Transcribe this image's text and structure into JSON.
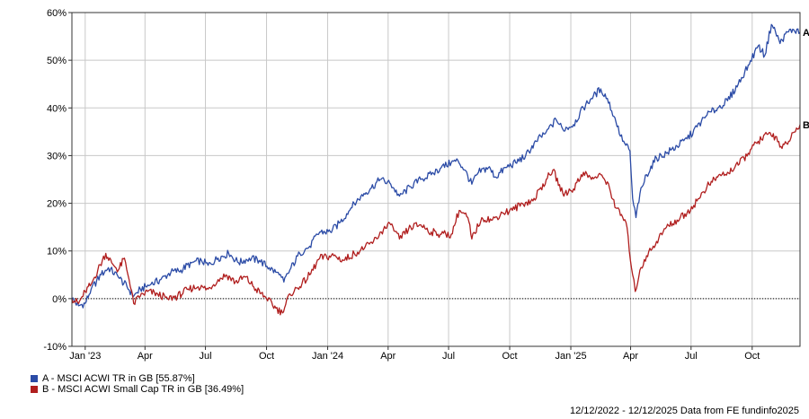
{
  "chart_data": {
    "type": "line",
    "title": "",
    "xlabel": "",
    "ylabel": "",
    "ylim": [
      -10,
      60
    ],
    "y_ticks": [
      -10,
      0,
      10,
      20,
      30,
      40,
      50,
      60
    ],
    "y_tick_labels": [
      "-10%",
      "0%",
      "10%",
      "20%",
      "30%",
      "40%",
      "50%",
      "60%"
    ],
    "x_range": [
      "2022-12-12",
      "2025-12-12"
    ],
    "x_ticks": [
      "2023-01-01",
      "2023-04-01",
      "2023-07-01",
      "2023-10-01",
      "2024-01-01",
      "2024-04-01",
      "2024-07-01",
      "2024-10-01",
      "2025-01-01",
      "2025-04-01",
      "2025-07-01",
      "2025-10-01"
    ],
    "x_tick_labels": [
      "Jan '23",
      "Apr",
      "Jul",
      "Oct",
      "Jan '24",
      "Apr",
      "Jul",
      "Oct",
      "Jan '25",
      "Apr",
      "Jul",
      "Oct"
    ],
    "grid": true,
    "zero_line": "dotted",
    "legend_position": "bottom-left",
    "series": [
      {
        "name": "A - MSCI ACWI TR in GB [55.87%]",
        "end_label": "A",
        "color": "#2b4ba6",
        "points": [
          [
            "2022-12-12",
            0
          ],
          [
            "2022-12-22",
            -1.5
          ],
          [
            "2023-01-01",
            -1
          ],
          [
            "2023-01-10",
            2
          ],
          [
            "2023-01-25",
            5
          ],
          [
            "2023-02-05",
            6.5
          ],
          [
            "2023-02-20",
            4.5
          ],
          [
            "2023-03-05",
            2.5
          ],
          [
            "2023-03-15",
            0.5
          ],
          [
            "2023-03-25",
            2
          ],
          [
            "2023-04-10",
            3
          ],
          [
            "2023-04-25",
            4
          ],
          [
            "2023-05-10",
            5.5
          ],
          [
            "2023-05-25",
            6
          ],
          [
            "2023-06-10",
            7.5
          ],
          [
            "2023-06-25",
            8
          ],
          [
            "2023-07-05",
            7
          ],
          [
            "2023-07-20",
            8.5
          ],
          [
            "2023-08-05",
            9.5
          ],
          [
            "2023-08-20",
            7.5
          ],
          [
            "2023-09-05",
            8.5
          ],
          [
            "2023-09-20",
            8
          ],
          [
            "2023-10-05",
            6.5
          ],
          [
            "2023-10-20",
            5
          ],
          [
            "2023-10-27",
            3.5
          ],
          [
            "2023-11-05",
            6
          ],
          [
            "2023-11-20",
            9.5
          ],
          [
            "2023-12-05",
            11
          ],
          [
            "2023-12-20",
            14
          ],
          [
            "2024-01-05",
            14
          ],
          [
            "2024-01-20",
            16
          ],
          [
            "2024-02-05",
            19
          ],
          [
            "2024-02-20",
            21.5
          ],
          [
            "2024-03-05",
            23
          ],
          [
            "2024-03-20",
            25
          ],
          [
            "2024-04-05",
            24
          ],
          [
            "2024-04-18",
            21.5
          ],
          [
            "2024-05-05",
            23.5
          ],
          [
            "2024-05-20",
            25
          ],
          [
            "2024-06-05",
            26
          ],
          [
            "2024-06-20",
            27.5
          ],
          [
            "2024-07-05",
            28.5
          ],
          [
            "2024-07-15",
            29
          ],
          [
            "2024-07-25",
            27
          ],
          [
            "2024-08-05",
            24
          ],
          [
            "2024-08-15",
            26.5
          ],
          [
            "2024-08-30",
            27.5
          ],
          [
            "2024-09-10",
            25.5
          ],
          [
            "2024-09-25",
            27.5
          ],
          [
            "2024-10-10",
            28.5
          ],
          [
            "2024-10-25",
            30
          ],
          [
            "2024-11-10",
            33
          ],
          [
            "2024-11-25",
            35
          ],
          [
            "2024-12-10",
            37.5
          ],
          [
            "2024-12-20",
            35.5
          ],
          [
            "2025-01-05",
            36.5
          ],
          [
            "2025-01-20",
            40
          ],
          [
            "2025-02-01",
            42
          ],
          [
            "2025-02-15",
            44
          ],
          [
            "2025-02-25",
            42
          ],
          [
            "2025-03-10",
            37
          ],
          [
            "2025-03-20",
            33
          ],
          [
            "2025-03-31",
            31
          ],
          [
            "2025-04-04",
            21
          ],
          [
            "2025-04-09",
            17
          ],
          [
            "2025-04-15",
            22
          ],
          [
            "2025-04-25",
            26
          ],
          [
            "2025-05-10",
            29.5
          ],
          [
            "2025-05-25",
            30.5
          ],
          [
            "2025-06-10",
            32
          ],
          [
            "2025-06-25",
            33.5
          ],
          [
            "2025-07-10",
            36
          ],
          [
            "2025-07-25",
            38.5
          ],
          [
            "2025-08-10",
            40
          ],
          [
            "2025-08-25",
            41.5
          ],
          [
            "2025-09-10",
            45
          ],
          [
            "2025-09-25",
            49
          ],
          [
            "2025-10-10",
            53
          ],
          [
            "2025-10-20",
            51
          ],
          [
            "2025-10-30",
            57.5
          ],
          [
            "2025-11-05",
            56
          ],
          [
            "2025-11-12",
            53.5
          ],
          [
            "2025-11-20",
            55.5
          ],
          [
            "2025-12-01",
            56.5
          ],
          [
            "2025-12-12",
            55.87
          ]
        ]
      },
      {
        "name": "B - MSCI ACWI Small Cap TR in GB [36.49%]",
        "end_label": "B",
        "color": "#b01e1e",
        "points": [
          [
            "2022-12-12",
            0
          ],
          [
            "2022-12-22",
            -1
          ],
          [
            "2023-01-01",
            1.5
          ],
          [
            "2023-01-10",
            3
          ],
          [
            "2023-01-20",
            6
          ],
          [
            "2023-02-01",
            9.5
          ],
          [
            "2023-02-10",
            7.5
          ],
          [
            "2023-02-20",
            6
          ],
          [
            "2023-03-01",
            8.5
          ],
          [
            "2023-03-08",
            4
          ],
          [
            "2023-03-15",
            -1
          ],
          [
            "2023-03-25",
            0.5
          ],
          [
            "2023-04-05",
            1.5
          ],
          [
            "2023-04-20",
            1
          ],
          [
            "2023-05-05",
            0
          ],
          [
            "2023-05-20",
            0.5
          ],
          [
            "2023-06-05",
            2
          ],
          [
            "2023-06-20",
            2.5
          ],
          [
            "2023-07-05",
            2
          ],
          [
            "2023-07-20",
            4
          ],
          [
            "2023-08-01",
            5
          ],
          [
            "2023-08-15",
            3.5
          ],
          [
            "2023-08-30",
            4.5
          ],
          [
            "2023-09-15",
            2
          ],
          [
            "2023-10-01",
            0
          ],
          [
            "2023-10-15",
            -2
          ],
          [
            "2023-10-25",
            -3
          ],
          [
            "2023-11-05",
            1
          ],
          [
            "2023-11-20",
            2.5
          ],
          [
            "2023-12-05",
            5
          ],
          [
            "2023-12-20",
            8.5
          ],
          [
            "2024-01-10",
            9
          ],
          [
            "2024-01-25",
            8
          ],
          [
            "2024-02-10",
            9.5
          ],
          [
            "2024-02-25",
            10.5
          ],
          [
            "2024-03-10",
            12
          ],
          [
            "2024-03-25",
            14.5
          ],
          [
            "2024-04-05",
            15.5
          ],
          [
            "2024-04-18",
            12.5
          ],
          [
            "2024-05-05",
            15
          ],
          [
            "2024-05-20",
            15.5
          ],
          [
            "2024-06-05",
            14
          ],
          [
            "2024-06-20",
            13.5
          ],
          [
            "2024-07-05",
            13.5
          ],
          [
            "2024-07-17",
            18.5
          ],
          [
            "2024-07-30",
            17
          ],
          [
            "2024-08-05",
            12.5
          ],
          [
            "2024-08-20",
            17
          ],
          [
            "2024-09-05",
            16.5
          ],
          [
            "2024-09-20",
            18
          ],
          [
            "2024-10-05",
            18.5
          ],
          [
            "2024-10-20",
            20
          ],
          [
            "2024-11-05",
            20.5
          ],
          [
            "2024-11-25",
            25
          ],
          [
            "2024-12-05",
            27
          ],
          [
            "2024-12-20",
            22
          ],
          [
            "2025-01-05",
            23
          ],
          [
            "2025-01-20",
            26.5
          ],
          [
            "2025-02-01",
            25
          ],
          [
            "2025-02-15",
            26
          ],
          [
            "2025-02-25",
            24.5
          ],
          [
            "2025-03-10",
            19
          ],
          [
            "2025-03-25",
            16
          ],
          [
            "2025-04-04",
            5
          ],
          [
            "2025-04-08",
            1.5
          ],
          [
            "2025-04-15",
            6
          ],
          [
            "2025-04-25",
            9
          ],
          [
            "2025-05-10",
            12
          ],
          [
            "2025-05-25",
            15
          ],
          [
            "2025-06-10",
            16.5
          ],
          [
            "2025-06-25",
            18
          ],
          [
            "2025-07-10",
            20.5
          ],
          [
            "2025-07-25",
            23.5
          ],
          [
            "2025-08-10",
            25.5
          ],
          [
            "2025-08-25",
            26.5
          ],
          [
            "2025-09-10",
            28
          ],
          [
            "2025-09-25",
            30.5
          ],
          [
            "2025-10-10",
            33
          ],
          [
            "2025-10-25",
            34.5
          ],
          [
            "2025-11-05",
            34
          ],
          [
            "2025-11-15",
            31.5
          ],
          [
            "2025-11-25",
            33
          ],
          [
            "2025-12-05",
            35
          ],
          [
            "2025-12-12",
            36.49
          ]
        ]
      }
    ]
  },
  "footer": "12/12/2022 - 12/12/2025 Data from FE fundinfo2025"
}
